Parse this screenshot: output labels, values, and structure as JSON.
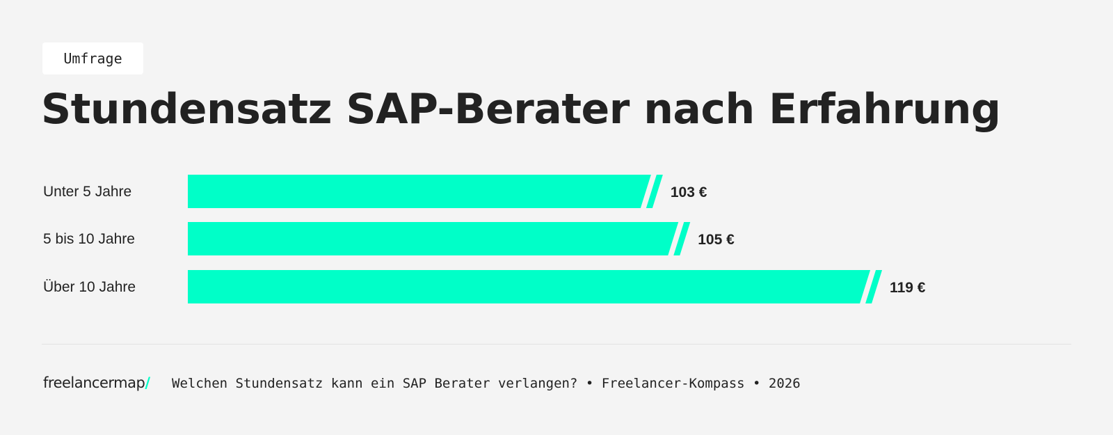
{
  "tag": "Umfrage",
  "footer": {
    "logo": "freelancermap",
    "logo_slash": "/",
    "source": "Welchen Stundensatz kann ein SAP Berater verlangen? • Freelancer-Kompass • 2026"
  },
  "chart_data": {
    "type": "bar",
    "orientation": "horizontal",
    "title": "Stundensatz SAP-Berater nach Erfahrung",
    "categories": [
      "Unter 5 Jahre",
      "5 bis 10 Jahre",
      "Über 10 Jahre"
    ],
    "values": [
      103,
      105,
      119
    ],
    "data_labels": [
      "103 €",
      "105 €",
      "119 €"
    ],
    "unit": "€",
    "bar_color": "#00ffc8",
    "axis_visible": false,
    "grid": false
  }
}
